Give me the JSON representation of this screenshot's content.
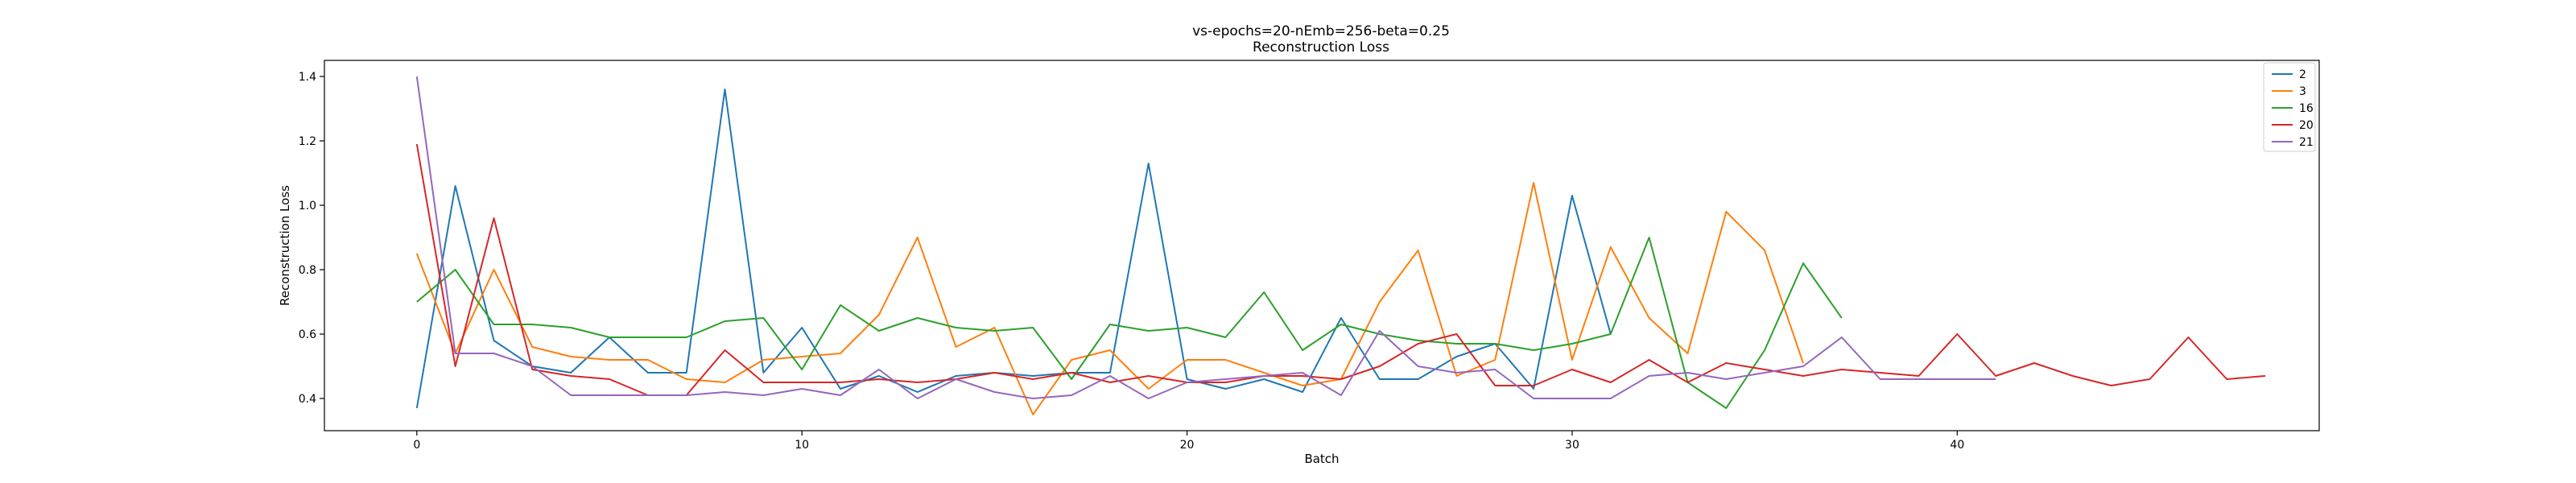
{
  "chart_data": {
    "type": "line",
    "title": "vs-epochs=20-nEmb=256-beta=0.25",
    "subtitle": "Reconstruction Loss",
    "xlabel": "Batch",
    "ylabel": "Reconstruction Loss",
    "xlim": [
      -2.4,
      49.4
    ],
    "ylim": [
      0.3,
      1.45
    ],
    "xticks": [
      0,
      10,
      20,
      30,
      40
    ],
    "yticks": [
      0.4,
      0.6,
      0.8,
      1.0,
      1.2,
      1.4
    ],
    "ytick_labels": [
      "0.4",
      "0.6",
      "0.8",
      "1.0",
      "1.2",
      "1.4"
    ],
    "grid": false,
    "legend_position": "top-right",
    "series": [
      {
        "name": "2",
        "color": "#1f77b4",
        "values": [
          0.37,
          1.06,
          0.58,
          0.5,
          0.48,
          0.59,
          0.48,
          0.48,
          1.36,
          0.48,
          0.62,
          0.43,
          0.47,
          0.42,
          0.47,
          0.48,
          0.47,
          0.48,
          0.48,
          1.13,
          0.46,
          0.43,
          0.46,
          0.42,
          0.65,
          0.46,
          0.46,
          0.53,
          0.57,
          0.43,
          1.03,
          0.6
        ]
      },
      {
        "name": "3",
        "color": "#ff7f0e",
        "values": [
          0.85,
          0.54,
          0.8,
          0.56,
          0.53,
          0.52,
          0.52,
          0.46,
          0.45,
          0.52,
          0.53,
          0.54,
          0.66,
          0.9,
          0.56,
          0.62,
          0.35,
          0.52,
          0.55,
          0.43,
          0.52,
          0.52,
          0.48,
          0.44,
          0.46,
          0.7,
          0.86,
          0.47,
          0.52,
          1.07,
          0.52,
          0.87,
          0.65,
          0.54,
          0.98,
          0.86,
          0.51
        ]
      },
      {
        "name": "16",
        "color": "#2ca02c",
        "values": [
          0.7,
          0.8,
          0.63,
          0.63,
          0.62,
          0.59,
          0.59,
          0.59,
          0.64,
          0.65,
          0.49,
          0.69,
          0.61,
          0.65,
          0.62,
          0.61,
          0.62,
          0.46,
          0.63,
          0.61,
          0.62,
          0.59,
          0.73,
          0.55,
          0.63,
          0.6,
          0.58,
          0.57,
          0.57,
          0.55,
          0.57,
          0.6,
          0.9,
          0.45,
          0.37,
          0.55,
          0.82,
          0.65
        ]
      },
      {
        "name": "20",
        "color": "#d62728",
        "values": [
          1.19,
          0.5,
          0.96,
          0.49,
          0.47,
          0.46,
          0.41,
          0.41,
          0.55,
          0.45,
          0.45,
          0.45,
          0.46,
          0.45,
          0.46,
          0.48,
          0.46,
          0.48,
          0.45,
          0.47,
          0.45,
          0.45,
          0.47,
          0.47,
          0.46,
          0.5,
          0.57,
          0.6,
          0.44,
          0.44,
          0.49,
          0.45,
          0.52,
          0.45,
          0.51,
          0.49,
          0.47,
          0.49,
          0.48,
          0.47,
          0.6,
          0.47,
          0.51,
          0.47,
          0.44,
          0.46,
          0.59,
          0.46,
          0.47
        ]
      },
      {
        "name": "21",
        "color": "#9467bd",
        "values": [
          1.4,
          0.54,
          0.54,
          0.5,
          0.41,
          0.41,
          0.41,
          0.41,
          0.42,
          0.41,
          0.43,
          0.41,
          0.49,
          0.4,
          0.46,
          0.42,
          0.4,
          0.41,
          0.47,
          0.4,
          0.45,
          0.46,
          0.47,
          0.48,
          0.41,
          0.61,
          0.5,
          0.48,
          0.49,
          0.4,
          0.4,
          0.4,
          0.47,
          0.48,
          0.46,
          0.48,
          0.5,
          0.59,
          0.46,
          0.46,
          0.46,
          0.46
        ]
      }
    ]
  }
}
